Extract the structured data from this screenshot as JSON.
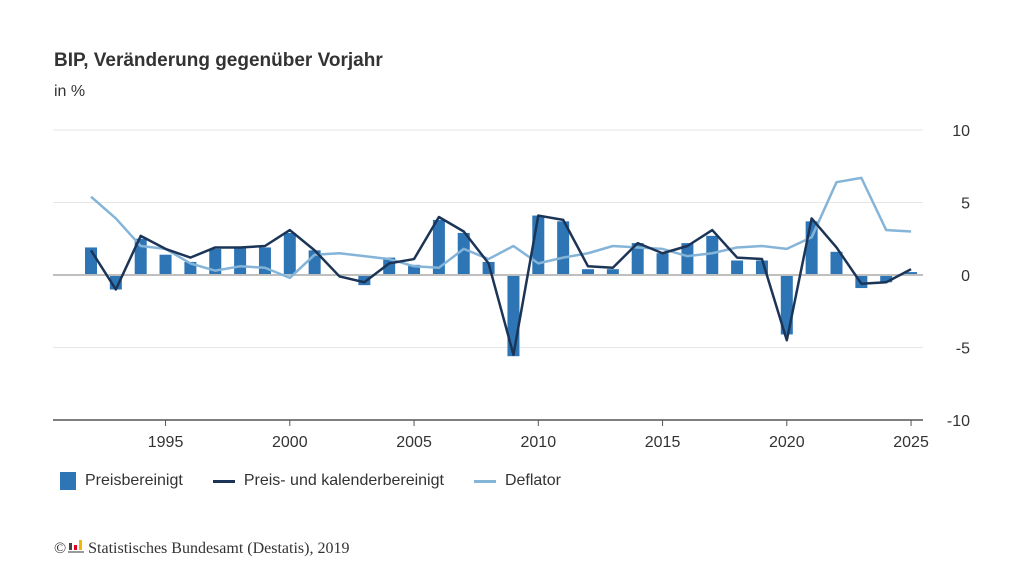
{
  "header": {
    "title": "BIP, Veränderung gegenüber Vorjahr",
    "unit": "in %"
  },
  "footer": {
    "copyright_symbol": "©",
    "logo_icon": "destatis-logo-icon",
    "source": "Statistisches Bundesamt (Destatis), 2019"
  },
  "colors": {
    "bars": "#2e75b6",
    "line_calendar": "#1c3557",
    "line_deflator": "#85b4d9",
    "zero_line": "#bfbfbf",
    "grid": "#e6e6e6",
    "axis": "#555555"
  },
  "chart_data": {
    "type": "bar",
    "title": "BIP, Veränderung gegenüber Vorjahr",
    "subtitle": "in %",
    "xlabel": "",
    "ylabel": "in %",
    "ylim": [
      -10,
      10
    ],
    "xlim": [
      1990.5,
      2025.5
    ],
    "y_axis_position": "right",
    "yticks": [
      10,
      5,
      0,
      -5,
      -10
    ],
    "ytick_labels": [
      "10",
      "5",
      "0",
      "-5",
      "-10"
    ],
    "xticks": [
      1995,
      2000,
      2005,
      2010,
      2015,
      2020,
      2025
    ],
    "xtick_labels": [
      "1995",
      "2000",
      "2005",
      "2010",
      "2015",
      "2020",
      "2025"
    ],
    "grid": true,
    "legend_position": "bottom-left",
    "x": [
      1992,
      1993,
      1994,
      1995,
      1996,
      1997,
      1998,
      1999,
      2000,
      2001,
      2002,
      2003,
      2004,
      2005,
      2006,
      2007,
      2008,
      2009,
      2010,
      2011,
      2012,
      2013,
      2014,
      2015,
      2016,
      2017,
      2018,
      2019,
      2020,
      2021,
      2022,
      2023,
      2024,
      2025
    ],
    "series": [
      {
        "name": "Preisbereinigt",
        "type": "bar",
        "values": [
          1.9,
          -1.0,
          2.5,
          1.4,
          0.9,
          1.8,
          1.9,
          1.9,
          2.9,
          1.7,
          0.0,
          -0.7,
          1.2,
          0.7,
          3.8,
          2.9,
          0.9,
          -5.6,
          4.1,
          3.7,
          0.4,
          0.4,
          2.2,
          1.5,
          2.2,
          2.7,
          1.0,
          1.0,
          -4.1,
          3.7,
          1.6,
          -0.9,
          -0.5,
          0.2
        ]
      },
      {
        "name": "Preis- und kalenderbereinigt",
        "type": "line",
        "values": [
          1.7,
          -1.0,
          2.7,
          1.8,
          1.2,
          1.9,
          1.9,
          2.0,
          3.1,
          1.7,
          -0.1,
          -0.5,
          0.8,
          1.1,
          4.0,
          3.0,
          0.8,
          -5.5,
          4.1,
          3.8,
          0.6,
          0.5,
          2.2,
          1.5,
          2.0,
          3.1,
          1.2,
          1.1,
          -4.5,
          3.9,
          1.9,
          -0.6,
          -0.5,
          0.4
        ]
      },
      {
        "name": "Deflator",
        "type": "line",
        "values": [
          5.4,
          3.9,
          2.0,
          1.8,
          0.8,
          0.3,
          0.6,
          0.5,
          -0.2,
          1.4,
          1.5,
          1.3,
          1.1,
          0.6,
          0.5,
          1.8,
          1.1,
          2.0,
          0.8,
          1.2,
          1.5,
          2.0,
          1.9,
          1.8,
          1.3,
          1.5,
          1.9,
          2.0,
          1.8,
          2.6,
          6.4,
          6.7,
          3.1,
          3.0
        ]
      }
    ]
  }
}
